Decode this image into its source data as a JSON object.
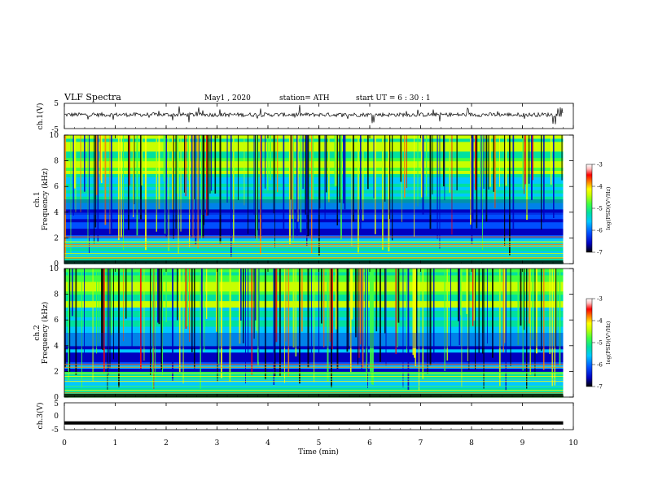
{
  "header": {
    "title": "VLF  Spectra",
    "date": "May1  , 2020",
    "station": "station= ATH",
    "start": "start  UT  =   6   : 30 : 1"
  },
  "panels": {
    "ch1_wave_label": "ch.1(V)",
    "ch1_spec_label1": "ch.1",
    "ch1_spec_label2": "Frequency  (kHz)",
    "ch2_spec_label1": "ch.2",
    "ch2_spec_label2": "Frequency  (kHz)",
    "ch3_wave_label": "ch.3(V)",
    "colorbar_label": "log(PSD)(V²/Hz)"
  },
  "chart_data": [
    {
      "type": "line",
      "name": "ch1-waveform",
      "ylabel": "ch.1(V)",
      "ylim": [
        -5,
        5
      ],
      "y_ticks": [
        "5",
        "-5"
      ],
      "xlim": [
        0,
        10
      ],
      "baseline": 0.5,
      "note": "noisy VLF waveform with spikes"
    },
    {
      "type": "heatmap",
      "name": "ch1-spectrogram",
      "ylabel": "Frequency  (kHz)",
      "ylim": [
        0,
        10
      ],
      "y_ticks": [
        "0",
        "2",
        "4",
        "6",
        "8",
        "10"
      ],
      "xlim": [
        0,
        9.8
      ],
      "colorbar": {
        "label": "log(PSD)(V²/Hz)",
        "range": [
          -7,
          -3
        ],
        "ticks": [
          "-3",
          "-4",
          "-5",
          "-6",
          "-7"
        ]
      },
      "colormap": [
        "#000000",
        "#0000c0",
        "#0050ff",
        "#00c8ff",
        "#00e0a0",
        "#40ff40",
        "#c8ff00",
        "#ffff00",
        "#ff8000",
        "#ff0000",
        "#ffc0c0",
        "#ffffff"
      ]
    },
    {
      "type": "heatmap",
      "name": "ch2-spectrogram",
      "ylabel": "Frequency  (kHz)",
      "ylim": [
        0,
        10
      ],
      "y_ticks": [
        "0",
        "2",
        "4",
        "6",
        "8",
        "10"
      ],
      "xlim": [
        0,
        9.8
      ],
      "colorbar": {
        "label": "log(PSD)(V²/Hz)",
        "range": [
          -7,
          -3
        ],
        "ticks": [
          "-3",
          "-4",
          "-5",
          "-6",
          "-7"
        ]
      }
    },
    {
      "type": "line",
      "name": "ch3-waveform",
      "ylabel": "ch.3(V)",
      "ylim": [
        -5,
        5
      ],
      "y_ticks": [
        "5",
        "0",
        "-5"
      ],
      "xlim": [
        0,
        10
      ],
      "values_constant": -2.5,
      "xlabel": "Time  (min)",
      "x_ticks": [
        "0",
        "1",
        "2",
        "3",
        "4",
        "5",
        "6",
        "7",
        "8",
        "9",
        "10"
      ]
    }
  ]
}
